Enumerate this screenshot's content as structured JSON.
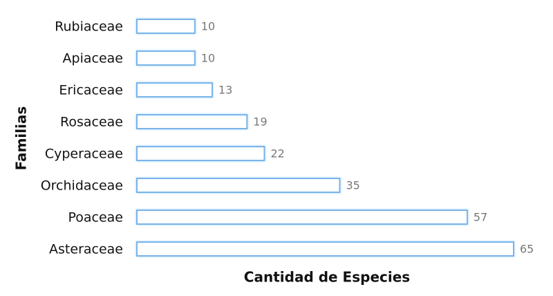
{
  "chart_data": {
    "type": "hbar",
    "x_label": "Cantidad de Especies",
    "y_label": "Familias",
    "categories": [
      "Rubiaceae",
      "Apiaceae",
      "Ericaceae",
      "Rosaceae",
      "Cyperaceae",
      "Orchidaceae",
      "Poaceae",
      "Asteraceae"
    ],
    "values": [
      10,
      10,
      13,
      19,
      22,
      35,
      57,
      65
    ],
    "color": "#7ab4e8",
    "xlim": [
      0,
      65
    ]
  }
}
